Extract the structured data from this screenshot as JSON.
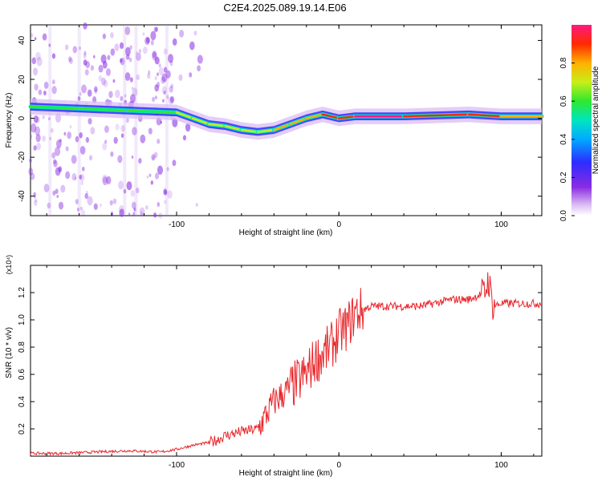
{
  "title": "C2E4.2025.089.19.14.E06",
  "chart_data": [
    {
      "type": "heatmap",
      "xlabel": "Height of straight line (km)",
      "ylabel": "Frequency (Hz)",
      "xlim": [
        -190,
        125
      ],
      "ylim": [
        -50,
        48
      ],
      "xticks": [
        -100,
        0,
        100
      ],
      "yticks": [
        -40,
        -20,
        0,
        20,
        40
      ],
      "colorbar": {
        "label": "Normalized spectral amplitude",
        "range": [
          0,
          1
        ],
        "ticks": [
          0.0,
          0.2,
          0.4,
          0.6,
          0.8
        ]
      },
      "ridge": {
        "x": [
          -190,
          -160,
          -130,
          -100,
          -90,
          -80,
          -70,
          -60,
          -50,
          -40,
          -30,
          -20,
          -10,
          0,
          10,
          40,
          80,
          100,
          125
        ],
        "freq": [
          6,
          5,
          4,
          3,
          0,
          -3,
          -4,
          -6,
          -7,
          -6,
          -3,
          0,
          2,
          0,
          1,
          1,
          2,
          1,
          1
        ],
        "amplitude": [
          0.55,
          0.6,
          0.55,
          0.6,
          0.65,
          0.7,
          0.65,
          0.7,
          0.6,
          0.7,
          0.75,
          0.8,
          0.8,
          0.85,
          0.9,
          0.95,
          0.85,
          0.9,
          0.7
        ]
      }
    },
    {
      "type": "line",
      "xlabel": "Height of straight line (km)",
      "ylabel": "SNR (10 * v/v)",
      "y_multiplier": "(x10⁴)",
      "xlim": [
        -190,
        125
      ],
      "ylim": [
        0,
        1.4
      ],
      "xticks": [
        -100,
        0,
        100
      ],
      "yticks": [
        0.2,
        0.4,
        0.6,
        0.8,
        1.0,
        1.2
      ],
      "series": [
        {
          "color": "#e8262b",
          "x": [
            -190,
            -170,
            -150,
            -130,
            -110,
            -100,
            -90,
            -80,
            -75,
            -70,
            -60,
            -50,
            -45,
            -40,
            -35,
            -30,
            -25,
            -20,
            -15,
            -10,
            -5,
            0,
            5,
            10,
            20,
            30,
            50,
            70,
            80,
            90,
            92,
            95,
            100,
            110,
            125
          ],
          "values": [
            0.02,
            0.02,
            0.03,
            0.04,
            0.03,
            0.05,
            0.08,
            0.1,
            0.12,
            0.15,
            0.18,
            0.2,
            0.3,
            0.4,
            0.45,
            0.5,
            0.55,
            0.6,
            0.7,
            0.75,
            0.8,
            0.9,
            0.95,
            1.05,
            1.1,
            1.1,
            1.1,
            1.15,
            1.15,
            1.2,
            1.3,
            1.1,
            1.12,
            1.12,
            1.12
          ]
        }
      ]
    }
  ]
}
